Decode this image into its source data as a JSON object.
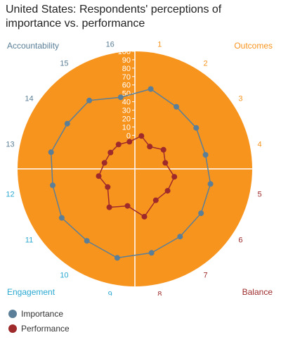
{
  "title": "United States: Respondents' perceptions of importance vs. performance",
  "quadrants": {
    "top_left": {
      "label": "Accountability",
      "color": "#5b7f98"
    },
    "top_right": {
      "label": "Outcomes",
      "color": "#f7941d"
    },
    "bottom_left": {
      "label": "Engagement",
      "color": "#29a8d1"
    },
    "bottom_right": {
      "label": "Balance",
      "color": "#9e2a2b"
    }
  },
  "legend": [
    {
      "name": "Importance",
      "color": "#5b7f98"
    },
    {
      "name": "Performance",
      "color": "#9e2a2b"
    }
  ],
  "chart_data": {
    "type": "radar",
    "categories": [
      "1",
      "2",
      "3",
      "4",
      "5",
      "6",
      "7",
      "8",
      "9",
      "10",
      "11",
      "12",
      "13",
      "14",
      "15",
      "16"
    ],
    "category_colors": [
      "#f7941d",
      "#f7941d",
      "#f7941d",
      "#f7941d",
      "#9e2a2b",
      "#9e2a2b",
      "#9e2a2b",
      "#9e2a2b",
      "#29a8d1",
      "#29a8d1",
      "#29a8d1",
      "#29a8d1",
      "#5b7f98",
      "#5b7f98",
      "#5b7f98",
      "#5b7f98"
    ],
    "radial_ticks": [
      0,
      10,
      20,
      30,
      40,
      50,
      60,
      70,
      80,
      90,
      100
    ],
    "range": [
      -40,
      100
    ],
    "background_color": "#f7941d",
    "series": [
      {
        "name": "Importance",
        "color": "#5b7f98",
        "values": [
          57,
          49,
          48,
          46,
          52,
          55,
          57,
          62,
          68,
          63,
          65,
          60,
          62,
          57,
          58,
          47
        ]
      },
      {
        "name": "Performance",
        "color": "#9e2a2b",
        "values": [
          0,
          -8,
          1,
          -3,
          8,
          7,
          5,
          18,
          5,
          15,
          -1,
          4,
          -3,
          -5,
          -5,
          -7
        ]
      }
    ]
  }
}
